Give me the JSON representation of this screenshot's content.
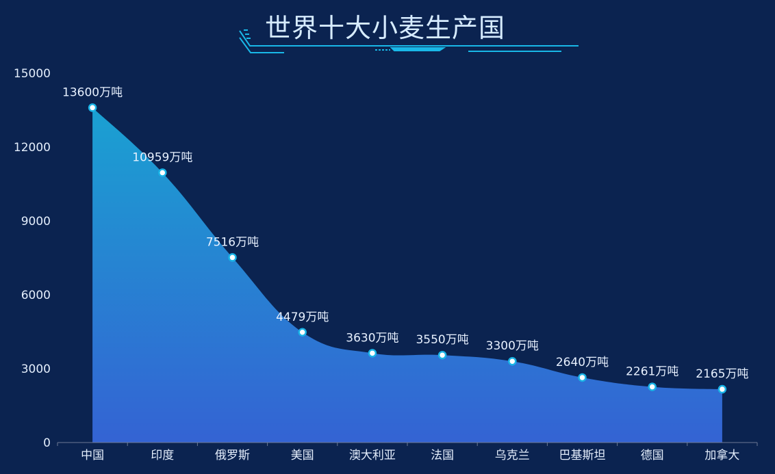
{
  "chart_data": {
    "type": "area",
    "title": "世界十大小麦生产国",
    "categories": [
      "中国",
      "印度",
      "俄罗斯",
      "美国",
      "澳大利亚",
      "法国",
      "乌克兰",
      "巴基斯坦",
      "德国",
      "加拿大"
    ],
    "series": [
      {
        "values": [
          13600,
          10959,
          7516,
          4479,
          3630,
          3550,
          3300,
          2640,
          2261,
          2165
        ],
        "labels": [
          "13600万吨",
          "10959万吨",
          "7516万吨",
          "4479万吨",
          "3630万吨",
          "3550万吨",
          "3300万吨",
          "2640万吨",
          "2261万吨",
          "2165万吨"
        ]
      }
    ],
    "yticks": [
      "0",
      "3000",
      "6000",
      "9000",
      "12000",
      "15000"
    ],
    "ylim": [
      0,
      15000
    ],
    "grid": false,
    "colors": {
      "background": "#0b2350",
      "area_top": "#1aa1d2",
      "area_bottom": "#3463d3",
      "marker_fill": "#ffffff",
      "marker_stroke": "#19b3e6",
      "decoration": "#19b8e8"
    }
  }
}
